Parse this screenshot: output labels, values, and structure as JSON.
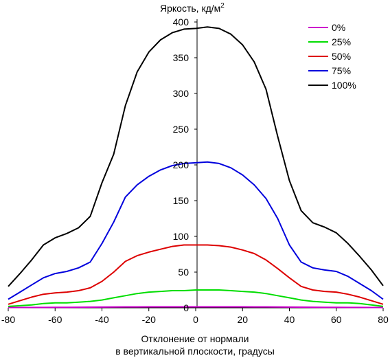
{
  "chart_data": {
    "type": "line",
    "title": "Яркость, кд/м²",
    "title_main": "Яркость, кд/м",
    "title_sup": "2",
    "xlabel_line1": "Отклонение от нормали",
    "xlabel_line2": "в вертикальной плоскости, градусы",
    "xlim": [
      -80,
      80
    ],
    "ylim": [
      0,
      400
    ],
    "x_ticks": [
      -80,
      -60,
      -40,
      -20,
      0,
      20,
      40,
      60,
      80
    ],
    "y_ticks": [
      0,
      50,
      100,
      150,
      200,
      250,
      300,
      350,
      400
    ],
    "legend_position": "top-right",
    "grid": false,
    "x": [
      -80,
      -75,
      -70,
      -65,
      -60,
      -55,
      -50,
      -45,
      -40,
      -35,
      -30,
      -25,
      -20,
      -15,
      -10,
      -5,
      0,
      5,
      10,
      15,
      20,
      25,
      30,
      35,
      40,
      45,
      50,
      55,
      60,
      65,
      70,
      75,
      80
    ],
    "series": [
      {
        "name": "0%",
        "color": "#cc00cc",
        "values": [
          0.5,
          0.5,
          0.6,
          0.6,
          0.7,
          0.8,
          0.9,
          1.0,
          1.1,
          1.2,
          1.3,
          1.3,
          1.4,
          1.4,
          1.4,
          1.4,
          1.4,
          1.4,
          1.4,
          1.4,
          1.4,
          1.3,
          1.3,
          1.2,
          1.1,
          1.0,
          0.9,
          0.8,
          0.7,
          0.6,
          0.6,
          0.5,
          0.5
        ]
      },
      {
        "name": "25%",
        "color": "#00dd00",
        "values": [
          2,
          3,
          4,
          6,
          7,
          7,
          8,
          9,
          11,
          14,
          17,
          20,
          22,
          23,
          24,
          24,
          25,
          25,
          25,
          24,
          23,
          22,
          20,
          17,
          14,
          11,
          9,
          8,
          7,
          7,
          6,
          4,
          2
        ]
      },
      {
        "name": "50%",
        "color": "#dd0000",
        "values": [
          5,
          10,
          15,
          19,
          21,
          22,
          24,
          28,
          37,
          50,
          65,
          73,
          78,
          82,
          86,
          88,
          88,
          88,
          87,
          85,
          81,
          76,
          67,
          55,
          42,
          30,
          25,
          23,
          22,
          19,
          15,
          10,
          5
        ]
      },
      {
        "name": "75%",
        "color": "#0000dd",
        "values": [
          12,
          22,
          32,
          42,
          48,
          51,
          56,
          64,
          90,
          120,
          155,
          172,
          184,
          193,
          199,
          202,
          203,
          204,
          202,
          196,
          186,
          172,
          153,
          125,
          88,
          64,
          56,
          53,
          51,
          44,
          34,
          24,
          12
        ]
      },
      {
        "name": "100%",
        "color": "#000000",
        "values": [
          30,
          48,
          67,
          88,
          98,
          104,
          112,
          128,
          175,
          215,
          283,
          330,
          358,
          375,
          385,
          390,
          391,
          393,
          391,
          383,
          368,
          344,
          306,
          240,
          178,
          136,
          119,
          113,
          105,
          90,
          72,
          53,
          31
        ]
      }
    ]
  }
}
